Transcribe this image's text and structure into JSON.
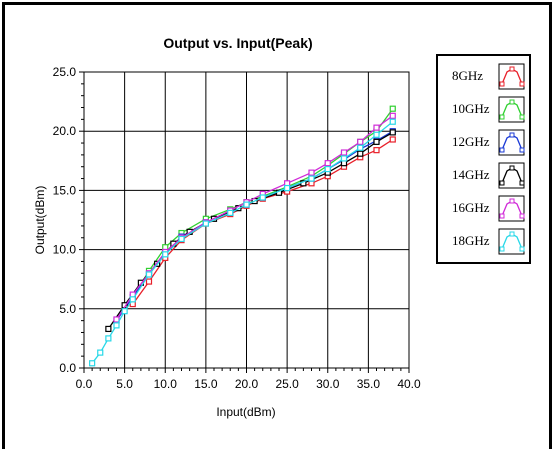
{
  "chart_data": {
    "type": "line",
    "title": "Output vs. Input(Peak)",
    "xlabel": "Input(dBm)",
    "ylabel": "Output(dBm)",
    "xlim": [
      0,
      40
    ],
    "ylim": [
      0,
      25
    ],
    "xticks": [
      "0.0",
      "5.0",
      "10.0",
      "15.0",
      "20.0",
      "25.0",
      "30.0",
      "35.0",
      "40.0"
    ],
    "yticks": [
      "0.0",
      "5.0",
      "10.0",
      "15.0",
      "20.0",
      "25.0"
    ],
    "grid": true,
    "legend_position": "right",
    "series": [
      {
        "name": "8GHz",
        "color": "#e8202a",
        "points": [
          [
            6,
            5.4
          ],
          [
            8,
            7.3
          ],
          [
            10,
            9.3
          ],
          [
            12,
            10.8
          ],
          [
            15,
            12.2
          ],
          [
            18,
            13.0
          ],
          [
            20,
            13.7
          ],
          [
            22,
            14.3
          ],
          [
            25,
            14.9
          ],
          [
            28,
            15.6
          ],
          [
            30,
            16.2
          ],
          [
            32,
            17.0
          ],
          [
            34,
            17.8
          ],
          [
            36,
            18.4
          ],
          [
            38,
            19.3
          ]
        ]
      },
      {
        "name": "10GHz",
        "color": "#30d030",
        "points": [
          [
            6,
            6.0
          ],
          [
            8,
            8.2
          ],
          [
            10,
            10.2
          ],
          [
            12,
            11.4
          ],
          [
            15,
            12.6
          ],
          [
            18,
            13.4
          ],
          [
            20,
            14.0
          ],
          [
            22,
            14.5
          ],
          [
            25,
            15.3
          ],
          [
            28,
            16.2
          ],
          [
            30,
            17.1
          ],
          [
            32,
            18.1
          ],
          [
            34,
            19.1
          ],
          [
            36,
            20.0
          ],
          [
            38,
            21.9
          ]
        ]
      },
      {
        "name": "12GHz",
        "color": "#1a3ad6",
        "points": [
          [
            4,
            4.0
          ],
          [
            6,
            6.0
          ],
          [
            8,
            7.9
          ],
          [
            10,
            9.7
          ],
          [
            12,
            11.1
          ],
          [
            15,
            12.3
          ],
          [
            18,
            13.1
          ],
          [
            20,
            13.8
          ],
          [
            22,
            14.4
          ],
          [
            25,
            15.2
          ],
          [
            28,
            16.0
          ],
          [
            30,
            16.8
          ],
          [
            32,
            17.6
          ],
          [
            34,
            18.5
          ],
          [
            36,
            19.2
          ],
          [
            38,
            20.0
          ]
        ]
      },
      {
        "name": "14GHz",
        "color": "#000000",
        "points": [
          [
            3,
            3.3
          ],
          [
            5,
            5.3
          ],
          [
            7,
            7.2
          ],
          [
            9,
            8.8
          ],
          [
            11,
            10.5
          ],
          [
            13,
            11.5
          ],
          [
            16,
            12.6
          ],
          [
            19,
            13.5
          ],
          [
            21,
            14.1
          ],
          [
            24,
            14.8
          ],
          [
            27,
            15.6
          ],
          [
            30,
            16.5
          ],
          [
            32,
            17.3
          ],
          [
            34,
            18.1
          ],
          [
            36,
            19.1
          ],
          [
            38,
            19.9
          ]
        ]
      },
      {
        "name": "16GHz",
        "color": "#d02ad8",
        "points": [
          [
            4,
            4.1
          ],
          [
            6,
            6.2
          ],
          [
            8,
            8.0
          ],
          [
            10,
            9.8
          ],
          [
            12,
            11.0
          ],
          [
            15,
            12.3
          ],
          [
            18,
            13.3
          ],
          [
            20,
            14.0
          ],
          [
            22,
            14.7
          ],
          [
            25,
            15.6
          ],
          [
            28,
            16.5
          ],
          [
            30,
            17.3
          ],
          [
            32,
            18.2
          ],
          [
            34,
            19.1
          ],
          [
            36,
            20.3
          ],
          [
            38,
            21.3
          ]
        ]
      },
      {
        "name": "18GHz",
        "color": "#28d8e8",
        "points": [
          [
            1,
            0.4
          ],
          [
            2,
            1.3
          ],
          [
            3,
            2.5
          ],
          [
            4,
            3.6
          ],
          [
            5,
            4.8
          ],
          [
            6,
            5.8
          ],
          [
            8,
            7.9
          ],
          [
            10,
            9.6
          ],
          [
            12,
            10.9
          ],
          [
            15,
            12.2
          ],
          [
            18,
            13.1
          ],
          [
            20,
            13.8
          ],
          [
            22,
            14.4
          ],
          [
            25,
            15.2
          ],
          [
            28,
            16.0
          ],
          [
            30,
            16.8
          ],
          [
            32,
            17.7
          ],
          [
            34,
            18.6
          ],
          [
            36,
            19.7
          ],
          [
            38,
            20.8
          ]
        ]
      }
    ]
  }
}
